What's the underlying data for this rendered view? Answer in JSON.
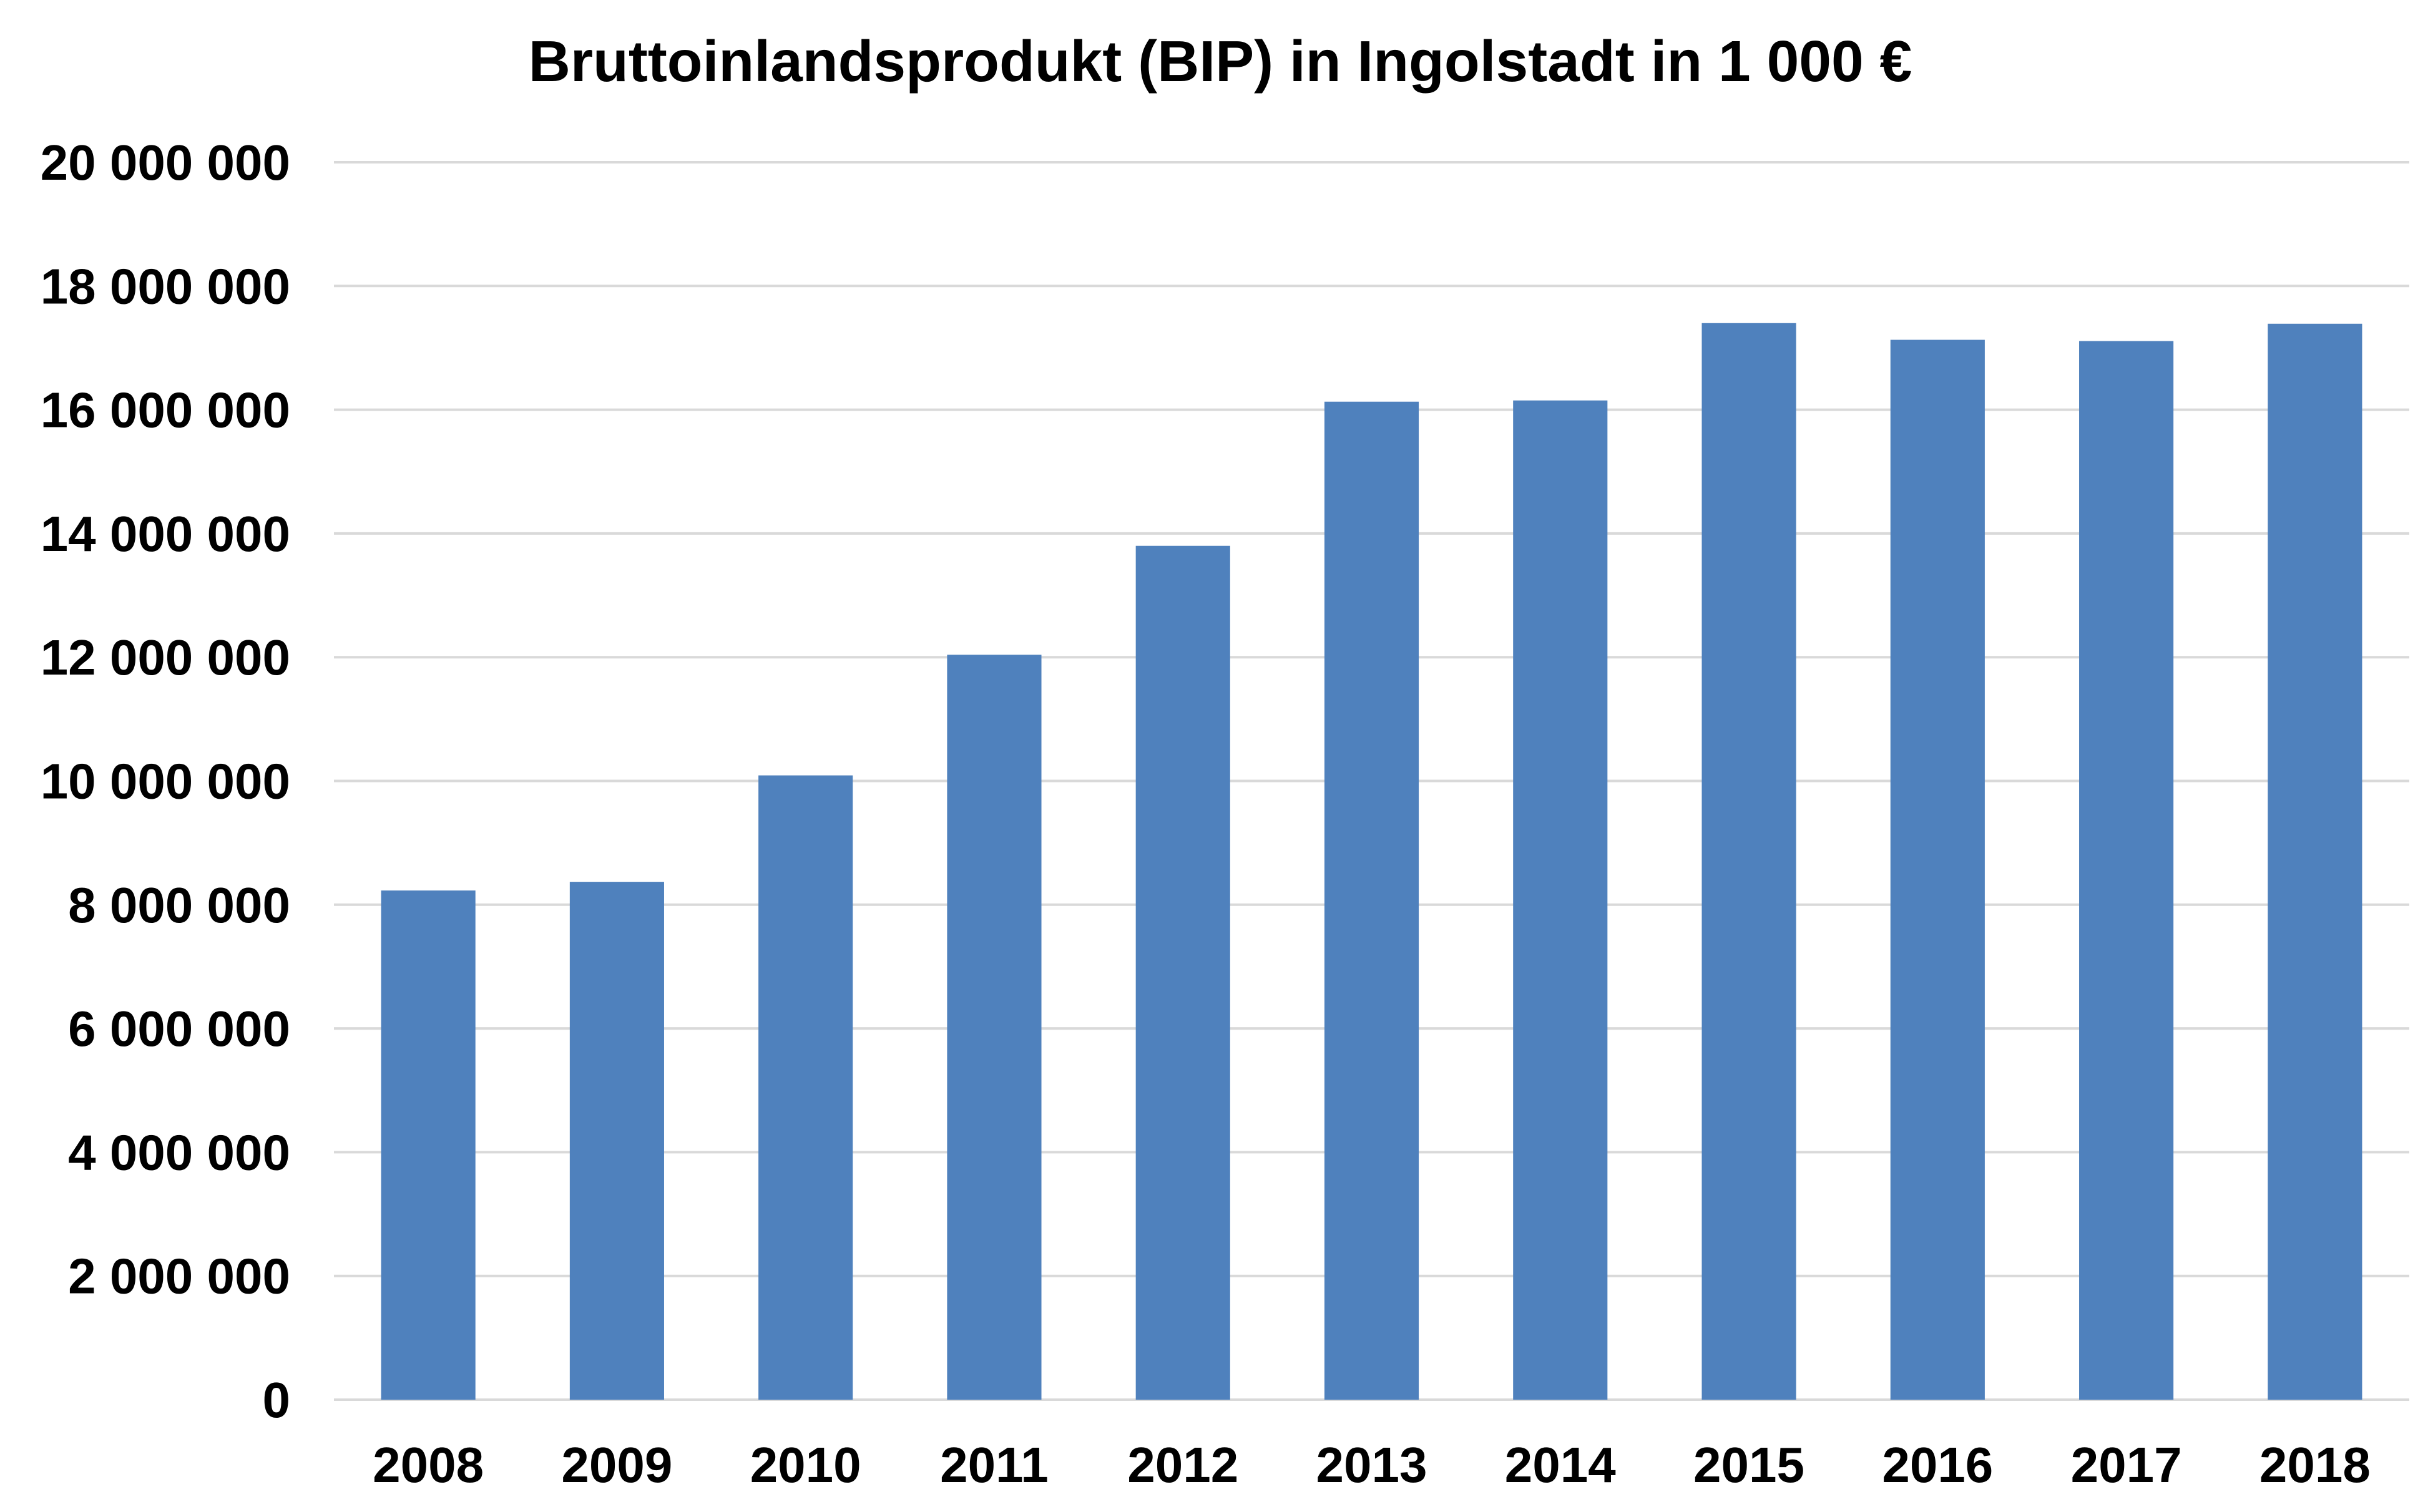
{
  "chart_data": {
    "type": "bar",
    "title": "Bruttoinlandsprodukt (BIP) in Ingolstadt in 1 000 €",
    "xlabel": "",
    "ylabel": "",
    "categories": [
      "2008",
      "2009",
      "2010",
      "2011",
      "2012",
      "2013",
      "2014",
      "2015",
      "2016",
      "2017",
      "2018"
    ],
    "values": [
      8230000,
      8370000,
      10090000,
      12040000,
      13800000,
      16130000,
      16150000,
      17400000,
      17130000,
      17110000,
      17390000
    ],
    "ylim": [
      0,
      20000000
    ],
    "yticks": [
      0,
      2000000,
      4000000,
      6000000,
      8000000,
      10000000,
      12000000,
      14000000,
      16000000,
      18000000,
      20000000
    ],
    "ytick_labels": [
      "0",
      "2 000 000",
      "4 000 000",
      "6 000 000",
      "8 000 000",
      "10 000 000",
      "12 000 000",
      "14 000 000",
      "16 000 000",
      "18 000 000",
      "20 000 000"
    ],
    "grid": true,
    "legend": false,
    "colors": {
      "bar": "#4f81bd",
      "grid": "#d9d9d9",
      "text": "#000000"
    }
  }
}
